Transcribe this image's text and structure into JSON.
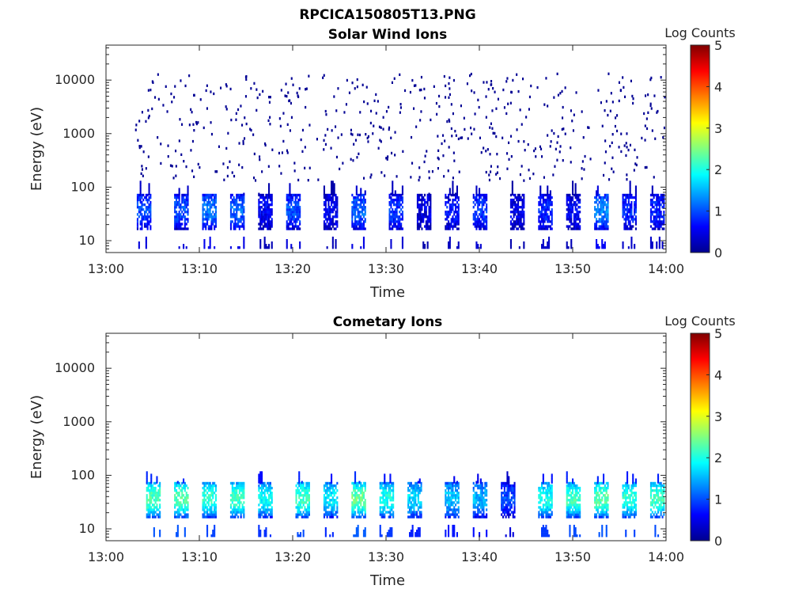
{
  "figure_title": "RPCICA150805T13.PNG",
  "chart_data": [
    {
      "type": "heatmap",
      "title": "Solar Wind Ions",
      "xlabel": "Time",
      "ylabel": "Energy (eV)",
      "yscale": "log",
      "ylim": [
        6,
        45000
      ],
      "xlim": [
        "13:00",
        "14:00"
      ],
      "xticks": [
        "13:00",
        "13:10",
        "13:20",
        "13:30",
        "13:40",
        "13:50",
        "14:00"
      ],
      "yticks": [
        10,
        100,
        1000,
        10000
      ],
      "yticklabels": [
        "10",
        "100",
        "1000",
        "10000"
      ],
      "colorbar": {
        "label": "Log Counts",
        "min": 0,
        "max": 5,
        "ticks": [
          "0",
          "1",
          "2",
          "3",
          "4",
          "5"
        ],
        "colormap": "jet"
      },
      "data_start": "13:03",
      "data_end": "14:00",
      "pulses": [
        {
          "time": "13:04",
          "log_counts": 1.0
        },
        {
          "time": "13:08",
          "log_counts": 1.0
        },
        {
          "time": "13:11",
          "log_counts": 1.2
        },
        {
          "time": "13:14",
          "log_counts": 1.1
        },
        {
          "time": "13:17",
          "log_counts": 0.6
        },
        {
          "time": "13:20",
          "log_counts": 1.0
        },
        {
          "time": "13:24",
          "log_counts": 0.6
        },
        {
          "time": "13:27",
          "log_counts": 1.1
        },
        {
          "time": "13:31",
          "log_counts": 0.9
        },
        {
          "time": "13:34",
          "log_counts": 0.5
        },
        {
          "time": "13:37",
          "log_counts": 0.7
        },
        {
          "time": "13:40",
          "log_counts": 0.9
        },
        {
          "time": "13:44",
          "log_counts": 0.5
        },
        {
          "time": "13:47",
          "log_counts": 0.8
        },
        {
          "time": "13:50",
          "log_counts": 0.6
        },
        {
          "time": "13:53",
          "log_counts": 1.3
        },
        {
          "time": "13:56",
          "log_counts": 0.8
        },
        {
          "time": "13:59",
          "log_counts": 0.8
        }
      ],
      "background_log_counts": 0.1
    },
    {
      "type": "heatmap",
      "title": "Cometary Ions",
      "xlabel": "Time",
      "ylabel": "Energy (eV)",
      "yscale": "log",
      "ylim": [
        6,
        45000
      ],
      "xlim": [
        "13:00",
        "14:00"
      ],
      "xticks": [
        "13:00",
        "13:10",
        "13:20",
        "13:30",
        "13:40",
        "13:50",
        "14:00"
      ],
      "yticks": [
        10,
        100,
        1000,
        10000
      ],
      "yticklabels": [
        "10",
        "100",
        "1000",
        "10000"
      ],
      "colorbar": {
        "label": "Log Counts",
        "min": 0,
        "max": 5,
        "ticks": [
          "0",
          "1",
          "2",
          "3",
          "4",
          "5"
        ],
        "colormap": "jet"
      },
      "data_start": "13:04",
      "data_end": "14:00",
      "pulses": [
        {
          "time": "13:05",
          "log_counts": 2.3
        },
        {
          "time": "13:08",
          "log_counts": 2.3
        },
        {
          "time": "13:11",
          "log_counts": 2.1
        },
        {
          "time": "13:14",
          "log_counts": 2.2
        },
        {
          "time": "13:17",
          "log_counts": 1.9
        },
        {
          "time": "13:21",
          "log_counts": 2.2
        },
        {
          "time": "13:24",
          "log_counts": 1.8
        },
        {
          "time": "13:27",
          "log_counts": 2.4
        },
        {
          "time": "13:30",
          "log_counts": 2.0
        },
        {
          "time": "13:33",
          "log_counts": 1.7
        },
        {
          "time": "13:37",
          "log_counts": 1.6
        },
        {
          "time": "13:40",
          "log_counts": 1.5
        },
        {
          "time": "13:43",
          "log_counts": 1.0
        },
        {
          "time": "13:47",
          "log_counts": 2.0
        },
        {
          "time": "13:50",
          "log_counts": 2.2
        },
        {
          "time": "13:53",
          "log_counts": 2.3
        },
        {
          "time": "13:56",
          "log_counts": 2.1
        },
        {
          "time": "13:59",
          "log_counts": 2.2
        }
      ],
      "background_log_counts": 0.0
    }
  ]
}
